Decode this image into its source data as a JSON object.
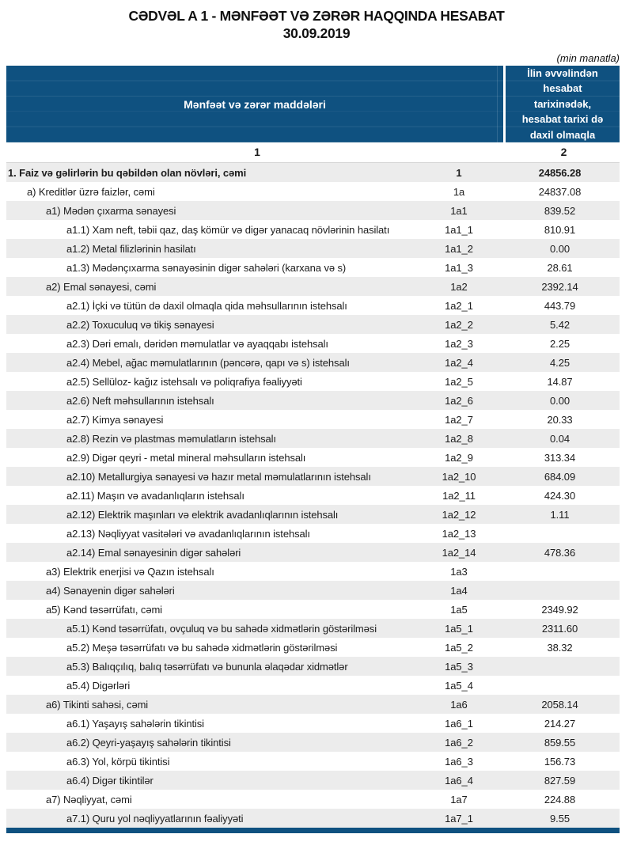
{
  "title": {
    "line1": "CƏDVƏL A 1 - MƏNFƏƏT VƏ ZƏRƏR HAQQINDA HESABAT",
    "line2": "30.09.2019"
  },
  "unit_note": "(min manatla)",
  "colors": {
    "header_bg": "#0F5180",
    "row_shade": "#ECECEC",
    "text": "#1c1c1c"
  },
  "table": {
    "header": {
      "col1": "Mənfəət və zərər maddələri",
      "col2": "İlin əvvəlindən hesabat tarixinədək, hesabat tarixi də daxil olmaqla"
    },
    "index_row": {
      "col1": "1",
      "col2": "2"
    },
    "rows": [
      {
        "label": "1. Faiz və gəlirlərin bu qəbildən olan növləri, cəmi",
        "code": "1",
        "value": "24856.28",
        "level": 0
      },
      {
        "label": "a) Kreditlər üzrə faizlər, cəmi",
        "code": "1a",
        "value": "24837.08",
        "level": 1
      },
      {
        "label": "a1) Mədən çıxarma sənayesi",
        "code": "1a1",
        "value": "839.52",
        "level": 2
      },
      {
        "label": "a1.1) Xam neft, təbii qaz, daş kömür və digər yanacaq növlərinin hasilatı",
        "code": "1a1_1",
        "value": "810.91",
        "level": 3
      },
      {
        "label": "a1.2) Metal filizlərinin hasilatı",
        "code": "1a1_2",
        "value": "0.00",
        "level": 3
      },
      {
        "label": "a1.3) Mədənçıxarma sənayəsinin digər sahələri (karxana və s)",
        "code": "1a1_3",
        "value": "28.61",
        "level": 3
      },
      {
        "label": "a2) Emal sənayesi, cəmi",
        "code": "1a2",
        "value": "2392.14",
        "level": 2
      },
      {
        "label": "a2.1) İçki və tütün də daxil olmaqla qida məhsullarının istehsalı",
        "code": "1a2_1",
        "value": "443.79",
        "level": 3
      },
      {
        "label": "a2.2) Toxuculuq və tikiş sənayesi",
        "code": "1a2_2",
        "value": "5.42",
        "level": 3
      },
      {
        "label": "a2.3) Dəri emalı, dəridən məmulatlar və ayaqqabı istehsalı",
        "code": "1a2_3",
        "value": "2.25",
        "level": 3
      },
      {
        "label": "a2.4) Mebel, ağac məmulatlarının (pəncərə, qapı və s) istehsalı",
        "code": "1a2_4",
        "value": "4.25",
        "level": 3
      },
      {
        "label": "a2.5) Sellüloz- kağız istehsalı və poliqrafiya fəaliyyəti",
        "code": "1a2_5",
        "value": "14.87",
        "level": 3
      },
      {
        "label": "a2.6) Neft məhsullarının istehsalı",
        "code": "1a2_6",
        "value": "0.00",
        "level": 3
      },
      {
        "label": "a2.7) Kimya sənayesi",
        "code": "1a2_7",
        "value": "20.33",
        "level": 3
      },
      {
        "label": "a2.8) Rezin və plastmas məmulatların istehsalı",
        "code": "1a2_8",
        "value": "0.04",
        "level": 3
      },
      {
        "label": "a2.9) Digər qeyri - metal mineral məhsulların istehsalı",
        "code": "1a2_9",
        "value": "313.34",
        "level": 3
      },
      {
        "label": "a2.10) Metallurgiya sənayesi və hazır metal məmulatlarının istehsalı",
        "code": "1a2_10",
        "value": "684.09",
        "level": 3
      },
      {
        "label": "a2.11) Maşın və avadanlıqların istehsalı",
        "code": "1a2_11",
        "value": "424.30",
        "level": 3
      },
      {
        "label": "a2.12) Elektrik maşınları və elektrik avadanlıqlarının istehsalı",
        "code": "1a2_12",
        "value": "1.11",
        "level": 3
      },
      {
        "label": "a2.13) Nəqliyyat vasitələri və avadanlıqlarının istehsalı",
        "code": "1a2_13",
        "value": "",
        "level": 3
      },
      {
        "label": "a2.14) Emal sənayesinin digər sahələri",
        "code": "1a2_14",
        "value": "478.36",
        "level": 3
      },
      {
        "label": "a3) Elektrik enerjisi və Qazın istehsalı",
        "code": "1a3",
        "value": "",
        "level": 2
      },
      {
        "label": "a4) Sənayenin digər sahələri",
        "code": "1a4",
        "value": "",
        "level": 2
      },
      {
        "label": "a5) Kənd təsərrüfatı, cəmi",
        "code": "1a5",
        "value": "2349.92",
        "level": 2
      },
      {
        "label": "a5.1) Kənd təsərrüfatı, ovçuluq və bu sahədə xidmətlərin göstərilməsi",
        "code": "1a5_1",
        "value": "2311.60",
        "level": 3
      },
      {
        "label": "a5.2) Meşə təsərrüfatı və bu sahədə xidmətlərin göstərilməsi",
        "code": "1a5_2",
        "value": "38.32",
        "level": 3
      },
      {
        "label": "a5.3) Balıqçılıq, balıq təsərrüfatı və bununla əlaqədar xidmətlər",
        "code": "1a5_3",
        "value": "",
        "level": 3
      },
      {
        "label": "a5.4) Digərləri",
        "code": "1a5_4",
        "value": "",
        "level": 3
      },
      {
        "label": "a6) Tikinti sahəsi, cəmi",
        "code": "1a6",
        "value": "2058.14",
        "level": 2
      },
      {
        "label": "a6.1) Yaşayış sahələrin tikintisi",
        "code": "1a6_1",
        "value": "214.27",
        "level": 3
      },
      {
        "label": "a6.2) Qeyri-yaşayış sahələrin tikintisi",
        "code": "1a6_2",
        "value": "859.55",
        "level": 3
      },
      {
        "label": "a6.3) Yol, körpü tikintisi",
        "code": "1a6_3",
        "value": "156.73",
        "level": 3
      },
      {
        "label": "a6.4) Digər tikintilər",
        "code": "1a6_4",
        "value": "827.59",
        "level": 3
      },
      {
        "label": "a7) Nəqliyyat, cəmi",
        "code": "1a7",
        "value": "224.88",
        "level": 2
      },
      {
        "label": "a7.1) Quru yol nəqliyyatlarının fəaliyyəti",
        "code": "1a7_1",
        "value": "9.55",
        "level": 3
      }
    ]
  }
}
